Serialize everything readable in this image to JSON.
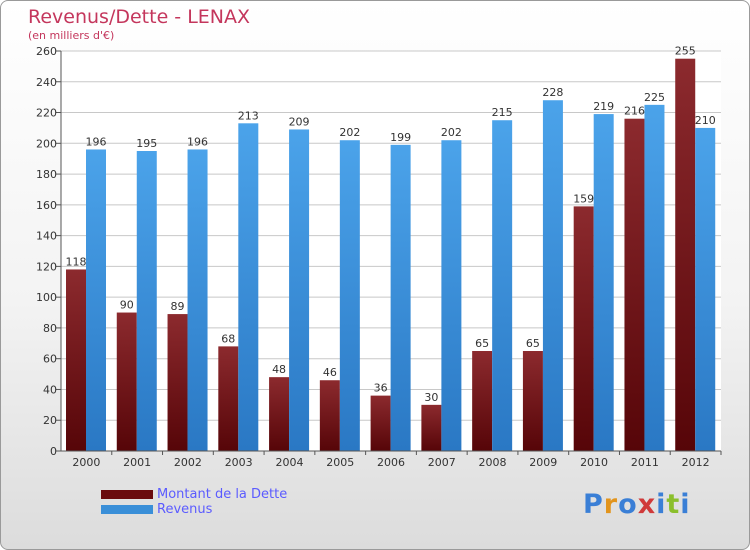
{
  "colors": {
    "dette": "#7a1418",
    "revenus": "#3a8fd8",
    "accent": "#c4365c"
  },
  "logo": {
    "letters": [
      "P",
      "r",
      "o",
      "x",
      "i",
      "t",
      "i"
    ],
    "colors": [
      "#3a7fd6",
      "#e2941c",
      "#3a7fd6",
      "#d03a3a",
      "#3a7fd6",
      "#8bbf2c",
      "#3a7fd6"
    ]
  },
  "chart_data": {
    "type": "bar",
    "title": "Revenus/Dette - LENAX",
    "subtitle": "(en milliers d'€)",
    "categories": [
      "2000",
      "2001",
      "2002",
      "2003",
      "2004",
      "2005",
      "2006",
      "2007",
      "2008",
      "2009",
      "2010",
      "2011",
      "2012"
    ],
    "series": [
      {
        "name": "Montant de la Dette",
        "color": "#7a1418",
        "values": [
          118,
          90,
          89,
          68,
          48,
          46,
          36,
          30,
          65,
          65,
          159,
          216,
          255
        ]
      },
      {
        "name": "Revenus",
        "color": "#3a8fd8",
        "values": [
          196,
          195,
          196,
          213,
          209,
          202,
          199,
          202,
          215,
          228,
          219,
          225,
          210
        ]
      }
    ],
    "ylim": [
      0,
      260
    ],
    "yticks": [
      0,
      20,
      40,
      60,
      80,
      100,
      120,
      140,
      160,
      180,
      200,
      220,
      240,
      260
    ],
    "grid": true,
    "legend": "bottom-left"
  }
}
